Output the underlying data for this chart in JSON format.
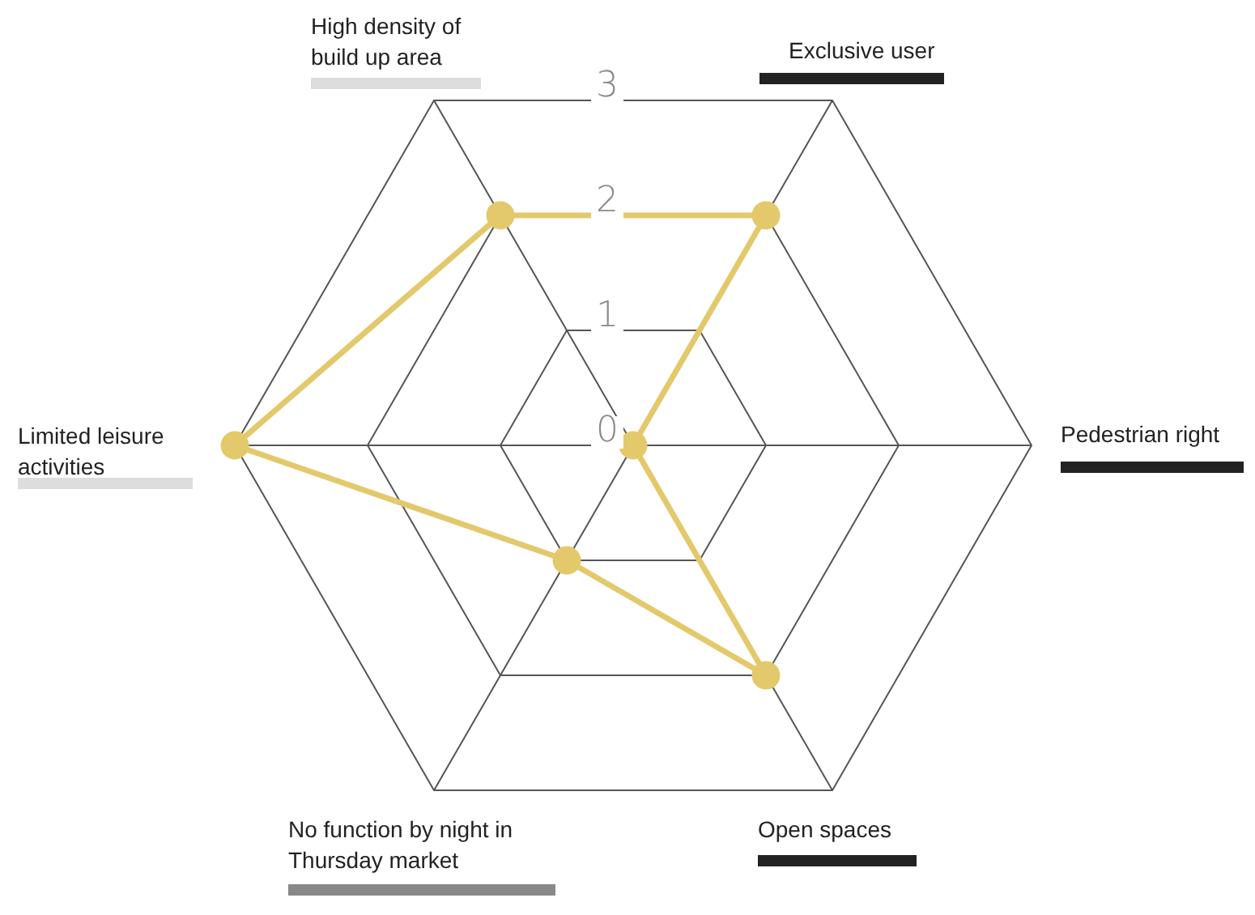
{
  "chart_data": {
    "type": "radar",
    "categories": [
      "Exclusive user",
      "Pedestrian right",
      "Open spaces",
      "No function by night in Thursday market",
      "Limited leisure activities",
      "High density of build up area"
    ],
    "series": [
      {
        "color": "#e3c96b",
        "values": [
          2,
          0,
          2,
          1,
          3,
          2
        ]
      }
    ],
    "ylim": [
      0,
      3
    ],
    "yticks": [
      0,
      1,
      2,
      3
    ],
    "grid": true,
    "marker": "circle"
  }
}
